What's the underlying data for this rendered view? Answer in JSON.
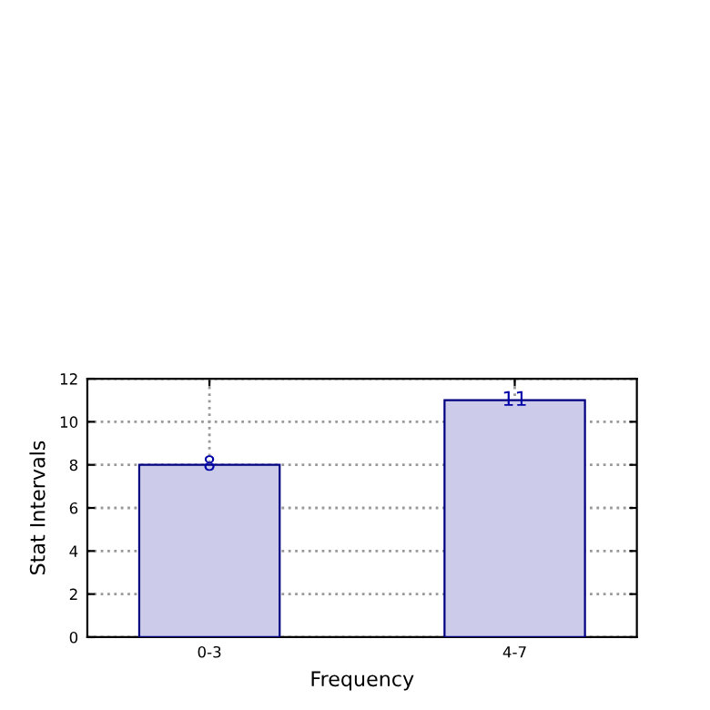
{
  "chart_data": {
    "type": "bar",
    "xlabel": "Frequency",
    "ylabel": "Stat Intervals",
    "categories": [
      "0-3",
      "4-7"
    ],
    "values": [
      8,
      11
    ],
    "color": "#ccccea",
    "ylim": [
      0,
      12
    ],
    "yticks": [
      0,
      2,
      4,
      6,
      8,
      10,
      12
    ],
    "grid": true,
    "data_labels": true
  }
}
